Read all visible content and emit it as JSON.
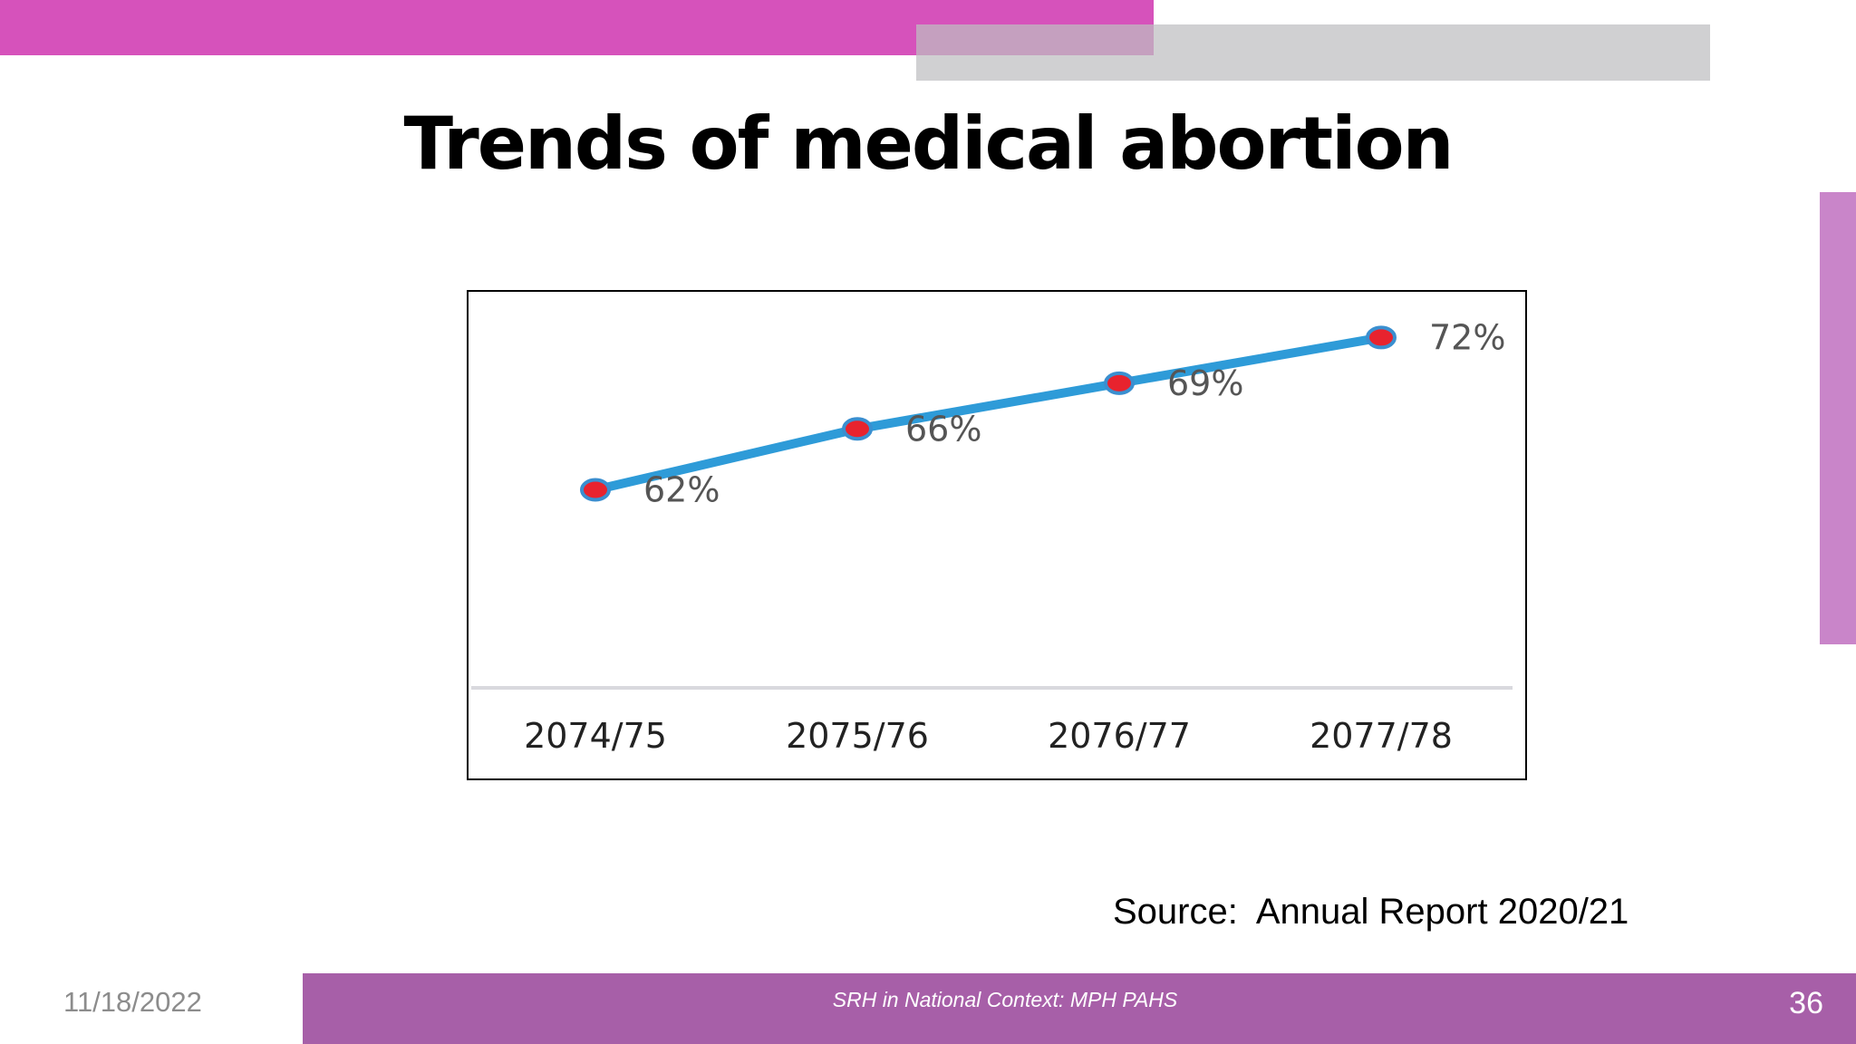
{
  "slide": {
    "title": "Trends of medical abortion",
    "source": "Source:  Annual Report 2020/21",
    "footer_text": "SRH in National Context: MPH PAHS",
    "date": "11/18/2022",
    "page_number": "36"
  },
  "colors": {
    "line": "#2e9bd8",
    "marker_fill": "#e8232e",
    "marker_stroke": "#3a8fd0",
    "top_bar": "#d652bb",
    "footer_bar": "#a75fa8",
    "side_accent": "#c985c9",
    "baseline": "#d9d9de"
  },
  "chart_data": {
    "type": "line",
    "title": "",
    "xlabel": "",
    "ylabel": "",
    "categories": [
      "2074/75",
      "2075/76",
      "2076/77",
      "2077/78"
    ],
    "series": [
      {
        "values": [
          62,
          66,
          69,
          72
        ],
        "labels": [
          "62%",
          "66%",
          "69%",
          "72%"
        ]
      }
    ],
    "ylim": [
      49,
      75
    ],
    "grid": false,
    "legend": "none"
  }
}
